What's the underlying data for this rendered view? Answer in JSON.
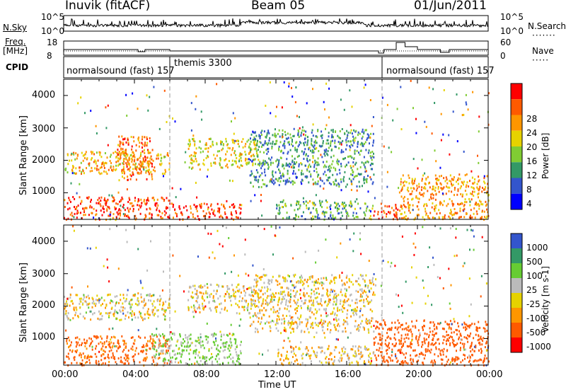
{
  "header": {
    "station": "Inuvik (fitACF)",
    "beam": "Beam 05",
    "date": "01/Jun/2011"
  },
  "top_panels": {
    "nsky_label": "N.Sky",
    "nsky_ticks": [
      "10^5",
      "10^0"
    ],
    "nsearch_label": "N.Search",
    "nsearch_ticks": [
      "10^5",
      "10^0"
    ],
    "freq_label": "Freq.",
    "freq_unit": "[MHz]",
    "freq_ticks": [
      "18",
      "8"
    ],
    "nave_label": "Nave",
    "nave_ticks": [
      "60",
      "0"
    ],
    "cpid_label": "CPID",
    "cpid_segments": [
      {
        "label": "normalsound (fast) 157",
        "start_hour": 0,
        "end_hour": 6
      },
      {
        "label": "themis 3300",
        "start_hour": 6,
        "end_hour": 18
      },
      {
        "label": "normalsound (fast) 157",
        "start_hour": 18,
        "end_hour": 24
      }
    ]
  },
  "chart_data": [
    {
      "type": "heatmap",
      "title": "",
      "xlabel": "Time UT",
      "ylabel": "Slant Range [km]",
      "x_range_hours": [
        0,
        24
      ],
      "x_tick_labels": [
        "00:00",
        "04:00",
        "08:00",
        "12:00",
        "16:00",
        "20:00",
        "00:00"
      ],
      "ylim": [
        180,
        4500
      ],
      "y_tick_labels": [
        "1000",
        "2000",
        "3000",
        "4000"
      ],
      "colorbar_label": "Power [dB]",
      "colorbar_ticks": [
        "28",
        "24",
        "20",
        "16",
        "12",
        "8",
        "4"
      ],
      "colorbar_colors": [
        "#ff0000",
        "#ff5a00",
        "#ff9600",
        "#e6d200",
        "#80cc33",
        "#339966",
        "#3355cc",
        "#0000ff"
      ],
      "echo_regions": [
        {
          "t0": 0.0,
          "t1": 6.0,
          "r0": 200,
          "r1": 900,
          "power": 26
        },
        {
          "t0": 0.0,
          "t1": 6.0,
          "r0": 1600,
          "r1": 2300,
          "power": 18
        },
        {
          "t0": 3.0,
          "t1": 5.0,
          "r0": 1400,
          "r1": 2800,
          "power": 22
        },
        {
          "t0": 6.0,
          "t1": 10.0,
          "r0": 200,
          "r1": 700,
          "power": 26
        },
        {
          "t0": 7.0,
          "t1": 11.0,
          "r0": 1800,
          "r1": 2700,
          "power": 16
        },
        {
          "t0": 10.5,
          "t1": 17.5,
          "r0": 1200,
          "r1": 3000,
          "power": 8
        },
        {
          "t0": 12.0,
          "t1": 17.5,
          "r0": 200,
          "r1": 800,
          "power": 10
        },
        {
          "t0": 17.5,
          "t1": 19.0,
          "r0": 200,
          "r1": 700,
          "power": 26
        },
        {
          "t0": 19.0,
          "t1": 24.0,
          "r0": 200,
          "r1": 1600,
          "power": 20
        }
      ]
    },
    {
      "type": "heatmap",
      "title": "",
      "xlabel": "Time UT",
      "ylabel": "Slant Range [km]",
      "x_range_hours": [
        0,
        24
      ],
      "x_tick_labels": [
        "00:00",
        "04:00",
        "08:00",
        "12:00",
        "16:00",
        "20:00",
        "00:00"
      ],
      "ylim": [
        180,
        4500
      ],
      "y_tick_labels": [
        "1000",
        "2000",
        "3000",
        "4000"
      ],
      "colorbar_label": "Velocity [m s-1]",
      "colorbar_ticks": [
        "1000",
        "500",
        "100",
        "25",
        "-25",
        "-100",
        "-500",
        "-1000"
      ],
      "colorbar_colors": [
        "#3355cc",
        "#339966",
        "#66cc33",
        "#bbbbbb",
        "#e6d200",
        "#ff9600",
        "#ff5a00",
        "#ff0000"
      ],
      "echo_regions": [
        {
          "t0": 0.0,
          "t1": 6.0,
          "r0": 200,
          "r1": 1100,
          "velocity": -150
        },
        {
          "t0": 0.0,
          "t1": 6.0,
          "r0": 1600,
          "r1": 2400,
          "velocity": 20
        },
        {
          "t0": 5.0,
          "t1": 10.0,
          "r0": 200,
          "r1": 1200,
          "velocity": 120
        },
        {
          "t0": 7.0,
          "t1": 11.0,
          "r0": 1800,
          "r1": 2700,
          "velocity": 10
        },
        {
          "t0": 10.5,
          "t1": 17.5,
          "r0": 1200,
          "r1": 3000,
          "velocity": 5
        },
        {
          "t0": 12.0,
          "t1": 17.5,
          "r0": 200,
          "r1": 800,
          "velocity": 0
        },
        {
          "t0": 17.5,
          "t1": 24.0,
          "r0": 200,
          "r1": 1600,
          "velocity": -300
        }
      ]
    }
  ]
}
